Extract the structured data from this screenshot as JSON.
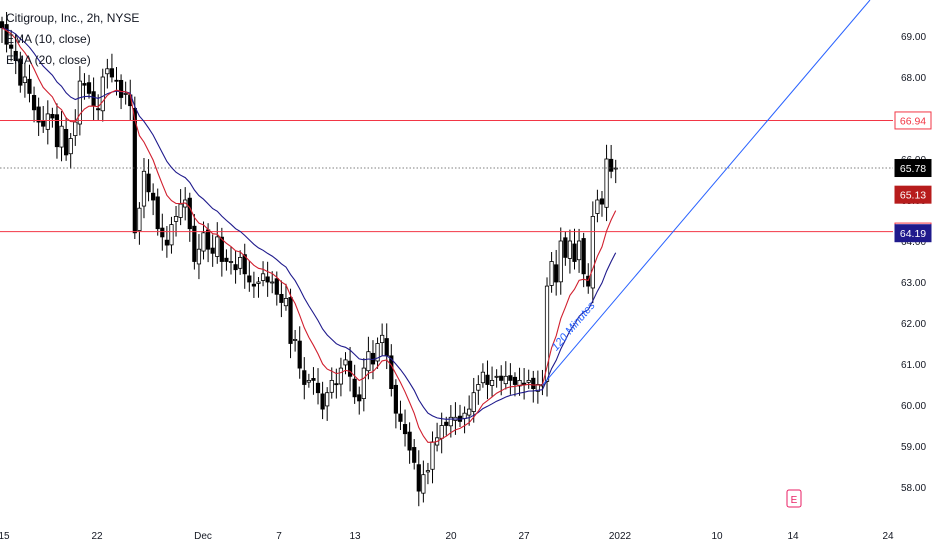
{
  "legend": {
    "symbol": "Citigroup, Inc., 2h, NYSE",
    "ema10": "EMA (10, close)",
    "ema20": "EMA (20, close)"
  },
  "colors": {
    "up": "#ffffff",
    "down": "#000000",
    "ema10": "#d1202f",
    "ema20": "#1f1a8c",
    "hline": "#f23645",
    "trend": "#2962ff",
    "last": "#000000"
  },
  "chart_data": {
    "type": "candlestick",
    "title": "Citigroup, Inc., 2h, NYSE",
    "ylim": [
      57.6,
      70.0
    ],
    "y_ticks": [
      "58.00",
      "59.00",
      "60.00",
      "61.00",
      "62.00",
      "63.00",
      "64.00",
      "65.00",
      "66.00",
      "67.00",
      "68.00",
      "69.00"
    ],
    "x_ticks": [
      "15",
      "22",
      "Dec",
      "7",
      "13",
      "20",
      "27",
      "2022",
      "10",
      "14",
      "24"
    ],
    "grid": false,
    "series": [
      {
        "name": "EMA (10, close)",
        "color": "#d1202f",
        "last": 65.13
      },
      {
        "name": "EMA (20, close)",
        "color": "#1f1a8c",
        "last": 64.19
      }
    ],
    "price_labels": [
      {
        "value": 66.94,
        "text": "66.94",
        "kind": "hline"
      },
      {
        "value": 65.78,
        "text": "65.78",
        "kind": "last"
      },
      {
        "value": 65.13,
        "text": "65.13",
        "kind": "ema10"
      },
      {
        "value": 64.23,
        "text": "64.23",
        "kind": "hline"
      },
      {
        "value": 64.19,
        "text": "64.19",
        "kind": "ema20"
      }
    ],
    "horizontal_lines": [
      66.94,
      64.23
    ],
    "last_price": 65.78,
    "trendline": {
      "label": "120 Minutes",
      "from": 60.48,
      "to": 70.0
    },
    "closes": [
      69.2,
      68.8,
      68.7,
      68.4,
      67.8,
      68.0,
      67.6,
      67.2,
      66.9,
      66.8,
      67.1,
      67.0,
      66.3,
      66.8,
      66.1,
      66.5,
      66.9,
      67.9,
      67.8,
      67.6,
      67.3,
      67.2,
      68.0,
      68.2,
      68.0,
      67.9,
      67.5,
      67.6,
      67.3,
      64.2,
      64.8,
      65.7,
      65.2,
      65.0,
      64.3,
      64.1,
      63.9,
      64.4,
      64.6,
      64.9,
      65.0,
      64.3,
      63.5,
      63.8,
      64.2,
      63.8,
      63.7,
      64.1,
      63.5,
      63.5,
      63.5,
      63.3,
      63.6,
      63.2,
      63.0,
      62.9,
      63.0,
      63.2,
      63.0,
      63.0,
      62.7,
      62.5,
      62.6,
      61.5,
      61.6,
      60.9,
      60.5,
      60.6,
      60.6,
      60.3,
      59.9,
      60.3,
      60.6,
      60.5,
      60.9,
      61.1,
      60.7,
      60.2,
      60.1,
      60.9,
      61.3,
      61.0,
      61.5,
      61.7,
      61.2,
      60.4,
      59.8,
      59.6,
      59.3,
      58.9,
      58.6,
      57.9,
      58.3,
      58.4,
      59.1,
      59.2,
      59.5,
      59.5,
      59.7,
      59.7,
      59.6,
      59.8,
      59.9,
      60.3,
      60.5,
      60.8,
      60.5,
      60.6,
      60.7,
      60.6,
      60.7,
      60.6,
      60.5,
      60.6,
      60.5,
      60.6,
      60.4,
      60.5,
      60.5,
      62.9,
      63.5,
      63.0,
      64.0,
      63.6,
      64.0,
      63.5,
      64.0,
      63.2,
      62.9,
      64.6,
      65.0,
      64.9,
      66.0,
      65.7,
      65.78
    ]
  }
}
